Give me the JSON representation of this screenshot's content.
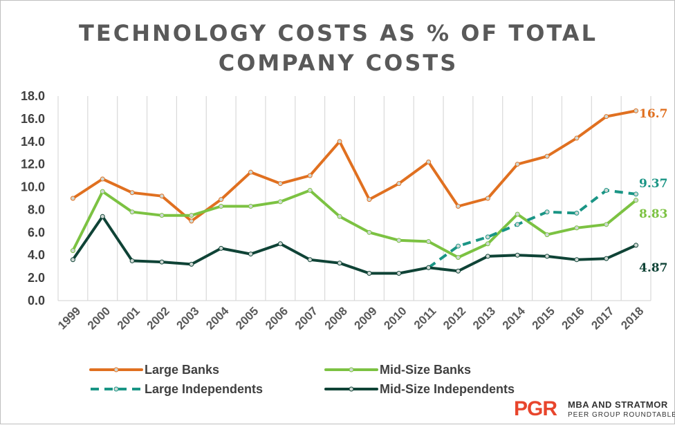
{
  "chart_data": {
    "type": "line",
    "title_lines": [
      "TECHNOLOGY  COSTS AS % OF TOTAL",
      "COMPANY  COSTS"
    ],
    "xlabel": "",
    "ylabel": "",
    "categories": [
      "1999",
      "2000",
      "2001",
      "2002",
      "2003",
      "2004",
      "2005",
      "2006",
      "2007",
      "2008",
      "2009",
      "2010",
      "2011",
      "2012",
      "2013",
      "2014",
      "2015",
      "2016",
      "2017",
      "2018"
    ],
    "ylim": [
      0,
      18
    ],
    "yticks": [
      "0.0",
      "2.0",
      "4.0",
      "6.0",
      "8.0",
      "10.0",
      "12.0",
      "14.0",
      "16.0",
      "18.0"
    ],
    "grid": "vertical",
    "legend_position": "bottom",
    "series": [
      {
        "name": "Large Banks",
        "color": "#e07020",
        "dash": "solid",
        "values": [
          9.0,
          10.7,
          9.5,
          9.2,
          7.0,
          8.9,
          11.3,
          10.3,
          11.0,
          14.0,
          8.9,
          10.3,
          12.2,
          8.3,
          9.0,
          12.0,
          12.7,
          14.3,
          16.2,
          16.7
        ],
        "end_label": "16.7"
      },
      {
        "name": "Mid-Size Banks",
        "color": "#7cc242",
        "dash": "solid",
        "values": [
          4.4,
          9.6,
          7.8,
          7.5,
          7.5,
          8.3,
          8.3,
          8.7,
          9.7,
          7.4,
          6.0,
          5.3,
          5.2,
          3.8,
          5.0,
          7.6,
          5.8,
          6.4,
          6.7,
          8.83
        ],
        "end_label": "8.83"
      },
      {
        "name": "Large Independents",
        "color": "#1a9585",
        "dash": "dashed",
        "values": [
          null,
          null,
          null,
          null,
          null,
          null,
          null,
          null,
          null,
          null,
          null,
          null,
          2.9,
          4.8,
          5.6,
          6.7,
          7.8,
          7.7,
          9.7,
          9.37
        ],
        "end_label": "9.37"
      },
      {
        "name": "Mid-Size Independents",
        "color": "#0f4336",
        "dash": "solid",
        "values": [
          3.6,
          7.4,
          3.5,
          3.4,
          3.2,
          4.6,
          4.1,
          5.0,
          3.6,
          3.3,
          2.4,
          2.4,
          2.9,
          2.6,
          3.9,
          4.0,
          3.9,
          3.6,
          3.7,
          4.87
        ],
        "end_label": "4.87"
      }
    ]
  },
  "logo": {
    "mark": "PGR",
    "line1": "MBA AND STRATMOR",
    "line2": "PEER GROUP ROUNDTABLES",
    "color": "#e8452c"
  }
}
